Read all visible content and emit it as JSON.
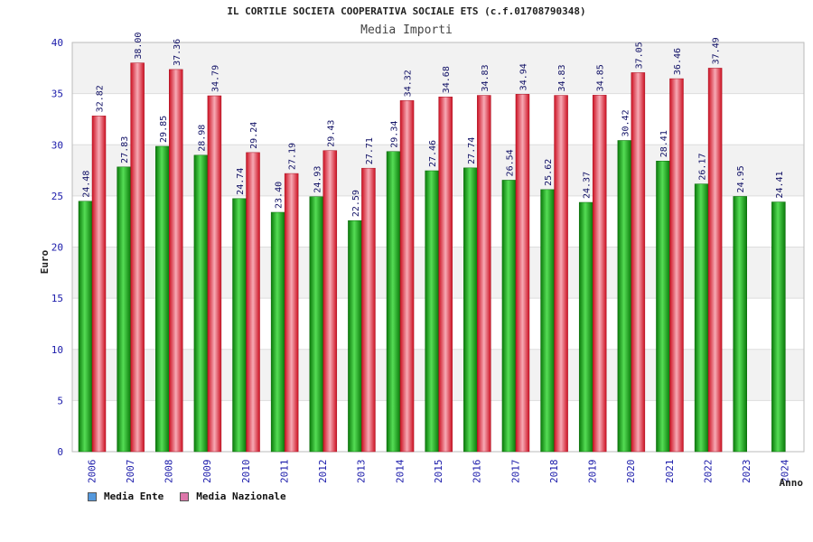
{
  "chart_data": {
    "type": "bar",
    "title": "IL CORTILE SOCIETA COOPERATIVA SOCIALE ETS (c.f.01708790348)",
    "subtitle": "Media Importi",
    "ylabel": "Euro",
    "xlabel": "Anno",
    "ylim": [
      0,
      40
    ],
    "yticks": [
      0,
      5,
      10,
      15,
      20,
      25,
      30,
      35,
      40
    ],
    "categories": [
      "2006",
      "2007",
      "2008",
      "2009",
      "2010",
      "2011",
      "2012",
      "2013",
      "2014",
      "2015",
      "2016",
      "2017",
      "2018",
      "2019",
      "2020",
      "2021",
      "2022",
      "2023",
      "2024"
    ],
    "series": [
      {
        "name": "Media Ente",
        "color": "#22aa22",
        "values": [
          24.48,
          27.83,
          29.85,
          28.98,
          24.74,
          23.4,
          24.93,
          22.59,
          29.34,
          27.46,
          27.74,
          26.54,
          25.62,
          24.37,
          30.42,
          28.41,
          26.17,
          24.95,
          24.41
        ],
        "labels": [
          "24.48",
          "27.83",
          "29.85",
          "28.98",
          "24.74",
          "23.40",
          "24.93",
          "22.59",
          "29.34",
          "27.46",
          "27.74",
          "26.54",
          "25.62",
          "24.37",
          "30.42",
          "28.41",
          "26.17",
          "24.95",
          "24.41"
        ]
      },
      {
        "name": "Media Nazionale",
        "color": "#ee3344",
        "values": [
          32.82,
          38.0,
          37.36,
          34.79,
          29.24,
          27.19,
          29.43,
          27.71,
          34.32,
          34.68,
          34.83,
          34.94,
          34.83,
          34.85,
          37.05,
          36.46,
          37.49,
          null,
          null
        ],
        "labels": [
          "32.82",
          "38.00",
          "37.36",
          "34.79",
          "29.24",
          "27.19",
          "29.43",
          "27.71",
          "34.32",
          "34.68",
          "34.83",
          "34.94",
          "34.83",
          "34.85",
          "37.05",
          "36.46",
          "37.49",
          "",
          ""
        ]
      }
    ],
    "grid": true,
    "legend_position": "bottom-left",
    "legend_swatch_colors": [
      "#5599dd",
      "#dd77aa"
    ]
  }
}
